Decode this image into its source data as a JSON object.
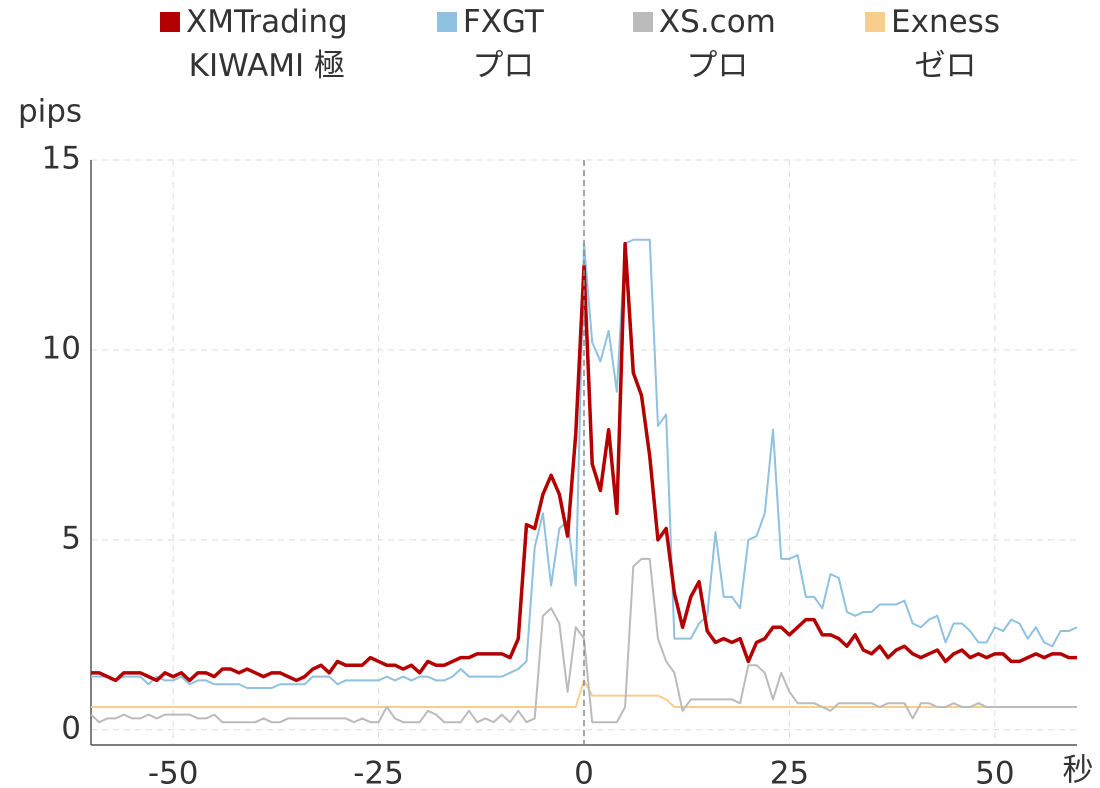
{
  "chart_data": {
    "type": "line",
    "ylabel": "pips",
    "xlabel": "秒",
    "x": [
      -60,
      -59,
      -58,
      -57,
      -56,
      -55,
      -54,
      -53,
      -52,
      -51,
      -50,
      -49,
      -48,
      -47,
      -46,
      -45,
      -44,
      -43,
      -42,
      -41,
      -40,
      -39,
      -38,
      -37,
      -36,
      -35,
      -34,
      -33,
      -32,
      -31,
      -30,
      -29,
      -28,
      -27,
      -26,
      -25,
      -24,
      -23,
      -22,
      -21,
      -20,
      -19,
      -18,
      -17,
      -16,
      -15,
      -14,
      -13,
      -12,
      -11,
      -10,
      -9,
      -8,
      -7,
      -6,
      -5,
      -4,
      -3,
      -2,
      -1,
      0,
      1,
      2,
      3,
      4,
      5,
      6,
      7,
      8,
      9,
      10,
      11,
      12,
      13,
      14,
      15,
      16,
      17,
      18,
      19,
      20,
      21,
      22,
      23,
      24,
      25,
      26,
      27,
      28,
      29,
      30,
      31,
      32,
      33,
      34,
      35,
      36,
      37,
      38,
      39,
      40,
      41,
      42,
      43,
      44,
      45,
      46,
      47,
      48,
      49,
      50,
      51,
      52,
      53,
      54,
      55,
      56,
      57,
      58,
      59,
      60
    ],
    "series": [
      {
        "name": "XMTrading\nKIWAMI 極",
        "color": "#b30000",
        "width": 3.5,
        "values": [
          1.5,
          1.5,
          1.4,
          1.3,
          1.5,
          1.5,
          1.5,
          1.4,
          1.3,
          1.5,
          1.4,
          1.5,
          1.3,
          1.5,
          1.5,
          1.4,
          1.6,
          1.6,
          1.5,
          1.6,
          1.5,
          1.4,
          1.5,
          1.5,
          1.4,
          1.3,
          1.4,
          1.6,
          1.7,
          1.5,
          1.8,
          1.7,
          1.7,
          1.7,
          1.9,
          1.8,
          1.7,
          1.7,
          1.6,
          1.7,
          1.5,
          1.8,
          1.7,
          1.7,
          1.8,
          1.9,
          1.9,
          2.0,
          2.0,
          2.0,
          2.0,
          1.9,
          2.4,
          5.4,
          5.3,
          6.2,
          6.7,
          6.2,
          5.1,
          7.8,
          12.2,
          7.0,
          6.3,
          7.9,
          5.7,
          12.8,
          9.4,
          8.8,
          7.2,
          5.0,
          5.3,
          3.6,
          2.7,
          3.5,
          3.9,
          2.6,
          2.3,
          2.4,
          2.3,
          2.4,
          1.8,
          2.3,
          2.4,
          2.7,
          2.7,
          2.5,
          2.7,
          2.9,
          2.9,
          2.5,
          2.5,
          2.4,
          2.2,
          2.5,
          2.1,
          2.0,
          2.2,
          1.9,
          2.1,
          2.2,
          2.0,
          1.9,
          2.0,
          2.1,
          1.8,
          2.0,
          2.1,
          1.9,
          2.0,
          1.9,
          2.0,
          2.0,
          1.8,
          1.8,
          1.9,
          2.0,
          1.9,
          2.0,
          2.0,
          1.9,
          1.9
        ]
      },
      {
        "name": "FXGT\nプロ",
        "color": "#8fc1e0",
        "width": 2,
        "values": [
          1.4,
          1.4,
          1.4,
          1.3,
          1.4,
          1.4,
          1.4,
          1.2,
          1.4,
          1.3,
          1.3,
          1.4,
          1.2,
          1.3,
          1.3,
          1.2,
          1.2,
          1.2,
          1.2,
          1.1,
          1.1,
          1.1,
          1.1,
          1.2,
          1.2,
          1.2,
          1.2,
          1.4,
          1.4,
          1.4,
          1.2,
          1.3,
          1.3,
          1.3,
          1.3,
          1.3,
          1.4,
          1.3,
          1.4,
          1.3,
          1.4,
          1.4,
          1.3,
          1.3,
          1.4,
          1.6,
          1.4,
          1.4,
          1.4,
          1.4,
          1.4,
          1.5,
          1.6,
          1.8,
          4.8,
          5.7,
          3.8,
          5.3,
          5.5,
          3.8,
          12.8,
          10.2,
          9.7,
          10.5,
          8.9,
          12.8,
          12.9,
          12.9,
          12.9,
          8.0,
          8.3,
          2.4,
          2.4,
          2.4,
          2.8,
          3.0,
          5.2,
          3.5,
          3.5,
          3.2,
          5.0,
          5.1,
          5.7,
          7.9,
          4.5,
          4.5,
          4.6,
          3.5,
          3.5,
          3.2,
          4.1,
          4.0,
          3.1,
          3.0,
          3.1,
          3.1,
          3.3,
          3.3,
          3.3,
          3.4,
          2.8,
          2.7,
          2.9,
          3.0,
          2.3,
          2.8,
          2.8,
          2.6,
          2.3,
          2.3,
          2.7,
          2.6,
          2.9,
          2.8,
          2.4,
          2.7,
          2.3,
          2.2,
          2.6,
          2.6,
          2.7
        ]
      },
      {
        "name": "XS.com\nプロ",
        "color": "#bbbbbb",
        "width": 2,
        "values": [
          0.4,
          0.2,
          0.3,
          0.3,
          0.4,
          0.3,
          0.3,
          0.4,
          0.3,
          0.4,
          0.4,
          0.4,
          0.4,
          0.3,
          0.3,
          0.4,
          0.2,
          0.2,
          0.2,
          0.2,
          0.2,
          0.3,
          0.2,
          0.2,
          0.3,
          0.3,
          0.3,
          0.3,
          0.3,
          0.3,
          0.3,
          0.3,
          0.2,
          0.3,
          0.2,
          0.2,
          0.6,
          0.3,
          0.2,
          0.2,
          0.2,
          0.5,
          0.4,
          0.2,
          0.2,
          0.2,
          0.5,
          0.2,
          0.3,
          0.2,
          0.4,
          0.2,
          0.5,
          0.2,
          0.3,
          3.0,
          3.2,
          2.8,
          1.0,
          2.7,
          2.4,
          0.2,
          0.2,
          0.2,
          0.2,
          0.6,
          4.3,
          4.5,
          4.5,
          2.4,
          1.8,
          1.5,
          0.5,
          0.8,
          0.8,
          0.8,
          0.8,
          0.8,
          0.8,
          0.7,
          1.7,
          1.7,
          1.5,
          0.8,
          1.5,
          1.0,
          0.7,
          0.7,
          0.7,
          0.6,
          0.5,
          0.7,
          0.7,
          0.7,
          0.7,
          0.7,
          0.6,
          0.7,
          0.7,
          0.7,
          0.3,
          0.7,
          0.7,
          0.6,
          0.6,
          0.7,
          0.6,
          0.6,
          0.7,
          0.6,
          0.6,
          0.6,
          0.6,
          0.6,
          0.6,
          0.6,
          0.6,
          0.6,
          0.6,
          0.6,
          0.6
        ]
      },
      {
        "name": "Exness\nゼロ",
        "color": "#f8cd8e",
        "width": 2,
        "values": [
          0.6,
          0.6,
          0.6,
          0.6,
          0.6,
          0.6,
          0.6,
          0.6,
          0.6,
          0.6,
          0.6,
          0.6,
          0.6,
          0.6,
          0.6,
          0.6,
          0.6,
          0.6,
          0.6,
          0.6,
          0.6,
          0.6,
          0.6,
          0.6,
          0.6,
          0.6,
          0.6,
          0.6,
          0.6,
          0.6,
          0.6,
          0.6,
          0.6,
          0.6,
          0.6,
          0.6,
          0.6,
          0.6,
          0.6,
          0.6,
          0.6,
          0.6,
          0.6,
          0.6,
          0.6,
          0.6,
          0.6,
          0.6,
          0.6,
          0.6,
          0.6,
          0.6,
          0.6,
          0.6,
          0.6,
          0.6,
          0.6,
          0.6,
          0.6,
          0.6,
          1.3,
          0.9,
          0.9,
          0.9,
          0.9,
          0.9,
          0.9,
          0.9,
          0.9,
          0.9,
          0.8,
          0.6,
          0.6,
          0.6,
          0.6,
          0.6,
          0.6,
          0.6,
          0.6,
          0.6,
          0.6,
          0.6,
          0.6,
          0.6,
          0.6,
          0.6,
          0.6,
          0.6,
          0.6,
          0.6,
          0.6,
          0.6,
          0.6,
          0.6,
          0.6,
          0.6,
          0.6,
          0.6,
          0.6,
          0.6,
          0.6,
          0.6,
          0.6,
          0.6,
          0.6,
          0.6,
          0.6,
          0.6,
          0.6,
          0.6,
          0.6,
          0.6,
          0.6,
          0.6,
          0.6,
          0.6,
          0.6,
          0.6,
          0.6,
          0.6,
          0.6
        ]
      }
    ],
    "xlim": [
      -60,
      60
    ],
    "ylim": [
      -0.4,
      15
    ],
    "xticks": [
      -50,
      -25,
      0,
      25,
      50
    ],
    "yticks": [
      0,
      5,
      10,
      15
    ],
    "vline": 0,
    "grid": true
  }
}
